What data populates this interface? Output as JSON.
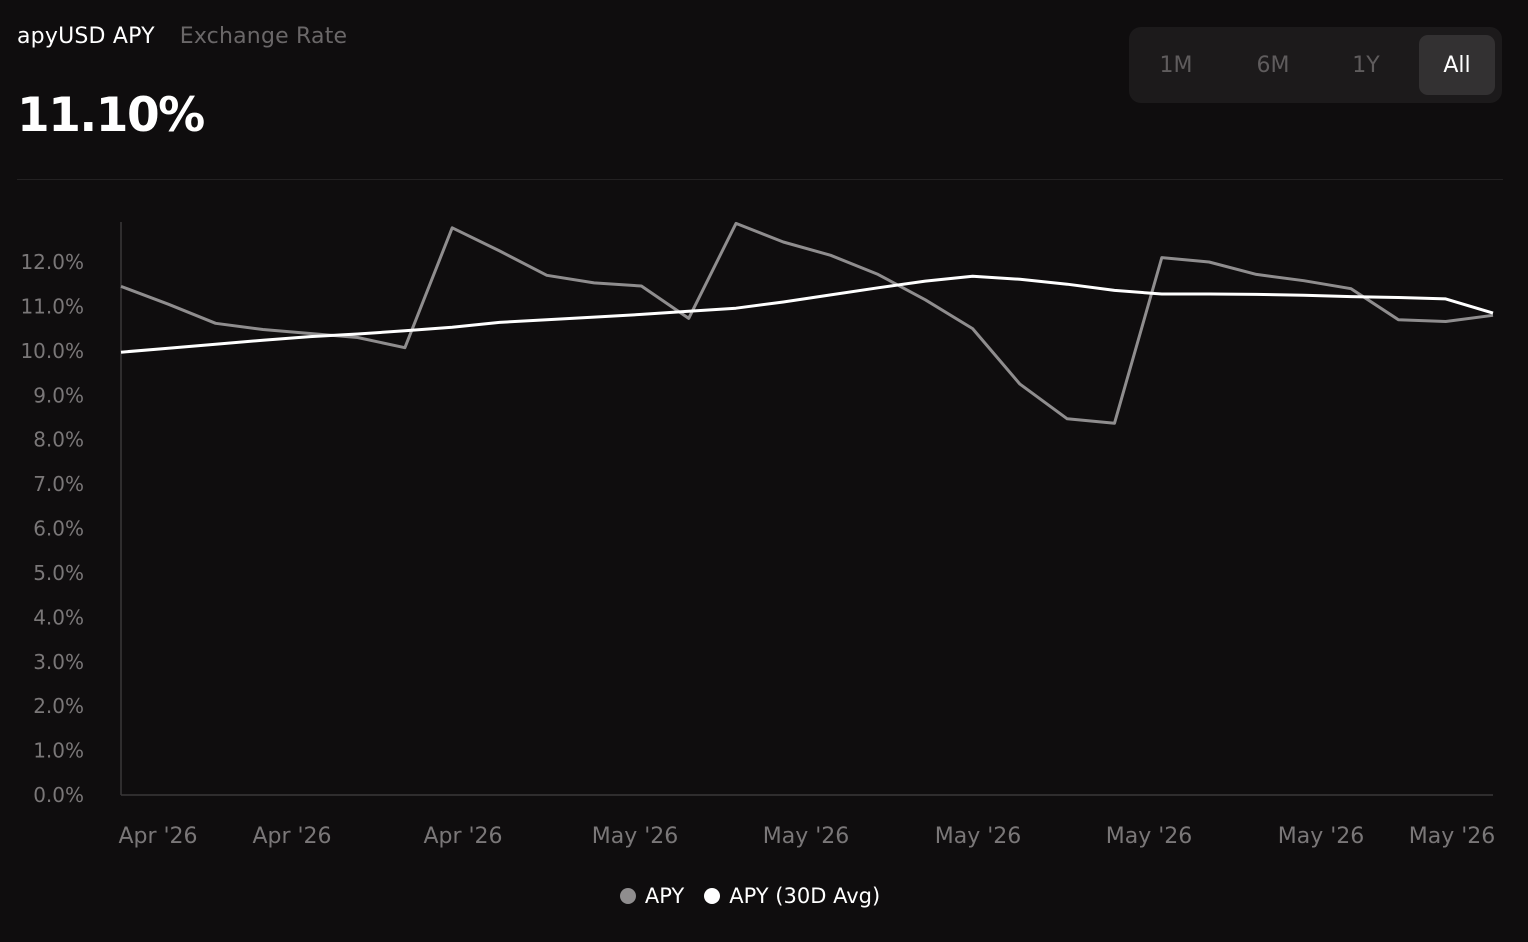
{
  "header": {
    "tabs": [
      {
        "label": "apyUSD APY",
        "active": true
      },
      {
        "label": "Exchange Rate",
        "active": false
      }
    ],
    "current_value": "11.10%"
  },
  "range_selector": {
    "options": [
      "1M",
      "6M",
      "1Y",
      "All"
    ],
    "selected": "All"
  },
  "colors": {
    "background": "#0f0d0e",
    "apy_series": "#8f8d8e",
    "avg_series": "#ffffff",
    "axis": "#3a3839",
    "tick_text": "#7a7778"
  },
  "chart_data": {
    "type": "line",
    "x_tick_labels": [
      "Apr '26",
      "Apr '26",
      "Apr '26",
      "May '26",
      "May '26",
      "May '26",
      "May '26",
      "May '26",
      "May '26"
    ],
    "y_tick_labels": [
      "0.0%",
      "1.0%",
      "2.0%",
      "3.0%",
      "4.0%",
      "5.0%",
      "6.0%",
      "7.0%",
      "8.0%",
      "9.0%",
      "10.0%",
      "11.0%",
      "12.0%"
    ],
    "ylim": [
      0,
      12.8
    ],
    "grid": false,
    "legend_position": "bottom-center",
    "series": [
      {
        "name": "APY",
        "values": [
          11.45,
          11.05,
          10.62,
          10.48,
          10.39,
          10.3,
          10.07,
          12.77,
          12.25,
          11.7,
          11.53,
          11.46,
          10.73,
          12.87,
          12.45,
          12.15,
          11.72,
          11.15,
          10.5,
          9.25,
          8.47,
          8.37,
          12.1,
          12.0,
          11.72,
          11.58,
          11.4,
          10.7,
          10.66,
          10.8
        ]
      },
      {
        "name": "APY (30D Avg)",
        "values": [
          9.97,
          10.06,
          10.15,
          10.24,
          10.32,
          10.38,
          10.45,
          10.53,
          10.64,
          10.7,
          10.76,
          10.82,
          10.89,
          10.96,
          11.1,
          11.26,
          11.42,
          11.57,
          11.68,
          11.61,
          11.5,
          11.36,
          11.28,
          11.28,
          11.27,
          11.25,
          11.22,
          11.2,
          11.17,
          10.85
        ]
      }
    ]
  },
  "legend": {
    "items": [
      {
        "label": "APY",
        "color": "#8f8d8e"
      },
      {
        "label": "APY (30D Avg)",
        "color": "#ffffff"
      }
    ]
  }
}
